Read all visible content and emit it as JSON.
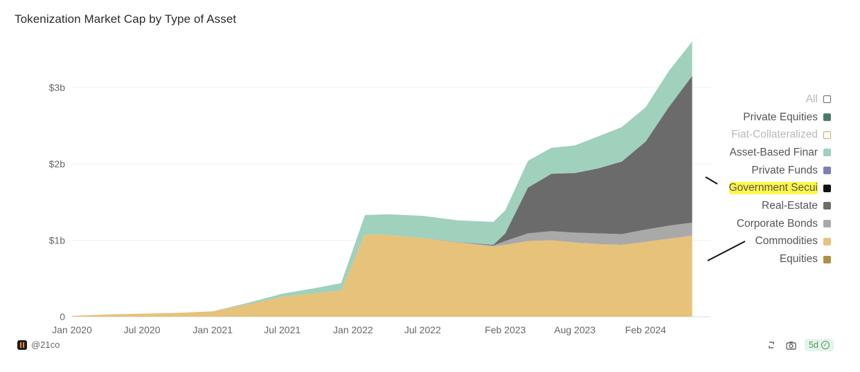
{
  "title": "Tokenization Market Cap by Type of Asset",
  "legend": [
    {
      "label": "All",
      "color": "#ffffff",
      "muted": true,
      "hollow": true
    },
    {
      "label": "Private Equities",
      "color": "#4d7a66"
    },
    {
      "label": "Fiat-Collateralized",
      "color": "#f0c48a",
      "muted": true,
      "hollow": true
    },
    {
      "label": "Asset-Based Finar",
      "color": "#9fd1bc"
    },
    {
      "label": "Private Funds",
      "color": "#7d7fb8"
    },
    {
      "label": "Government Secui",
      "color": "#111111",
      "highlight": true
    },
    {
      "label": "Real-Estate",
      "color": "#6b6b6b"
    },
    {
      "label": "Corporate Bonds",
      "color": "#a9a9a9"
    },
    {
      "label": "Commodities",
      "color": "#e6c27a"
    },
    {
      "label": "Equities",
      "color": "#b08f48"
    }
  ],
  "footer": {
    "source": "@21co",
    "age": "5d",
    "icons": [
      "refresh-icon",
      "camera-icon",
      "check-circle-icon"
    ]
  },
  "chart_data": {
    "type": "area",
    "stacked": true,
    "title": "Tokenization Market Cap by Type of Asset",
    "xlabel": "",
    "ylabel": "",
    "x_ticks": [
      "Jan 2020",
      "Jul 2020",
      "Jan 2021",
      "Jul 2021",
      "Jan 2022",
      "Jul 2022",
      "Feb 2023",
      "Aug 2023",
      "Feb 2024"
    ],
    "y_ticks": [
      "0",
      "$1b",
      "$2b",
      "$3b"
    ],
    "ylim": [
      0,
      3600000000
    ],
    "grid": "horizontal",
    "legend_position": "right",
    "x": [
      "2020-01",
      "2020-04",
      "2020-07",
      "2020-10",
      "2021-01",
      "2021-04",
      "2021-07",
      "2021-10",
      "2021-12",
      "2022-02",
      "2022-04",
      "2022-07",
      "2022-10",
      "2023-01",
      "2023-02",
      "2023-04",
      "2023-06",
      "2023-08",
      "2023-10",
      "2023-12",
      "2024-02",
      "2024-04",
      "2024-06"
    ],
    "series": [
      {
        "name": "Commodities",
        "color": "#e6c27a",
        "values": [
          0.01,
          0.03,
          0.04,
          0.05,
          0.07,
          0.16,
          0.26,
          0.31,
          0.34,
          1.08,
          1.07,
          1.03,
          0.97,
          0.92,
          0.94,
          0.99,
          1.0,
          0.97,
          0.95,
          0.94,
          0.98,
          1.02,
          1.06
        ]
      },
      {
        "name": "Corporate Bonds",
        "color": "#a9a9a9",
        "values": [
          0,
          0,
          0,
          0,
          0,
          0,
          0,
          0,
          0,
          0,
          0,
          0,
          0.01,
          0.01,
          0.05,
          0.1,
          0.12,
          0.13,
          0.14,
          0.14,
          0.16,
          0.17,
          0.17
        ]
      },
      {
        "name": "Real-Estate",
        "color": "#6b6b6b",
        "values": [
          0,
          0,
          0,
          0,
          0,
          0,
          0,
          0,
          0,
          0,
          0,
          0,
          0,
          0.01,
          0.1,
          0.6,
          0.75,
          0.78,
          0.85,
          0.95,
          1.15,
          1.55,
          1.92
        ]
      },
      {
        "name": "Asset-Based Finar",
        "color": "#9fd1bc",
        "values": [
          0,
          0,
          0,
          0,
          0,
          0.02,
          0.04,
          0.07,
          0.1,
          0.25,
          0.27,
          0.29,
          0.28,
          0.3,
          0.3,
          0.35,
          0.34,
          0.36,
          0.42,
          0.45,
          0.45,
          0.47,
          0.45
        ]
      }
    ],
    "units": "billions USD"
  }
}
